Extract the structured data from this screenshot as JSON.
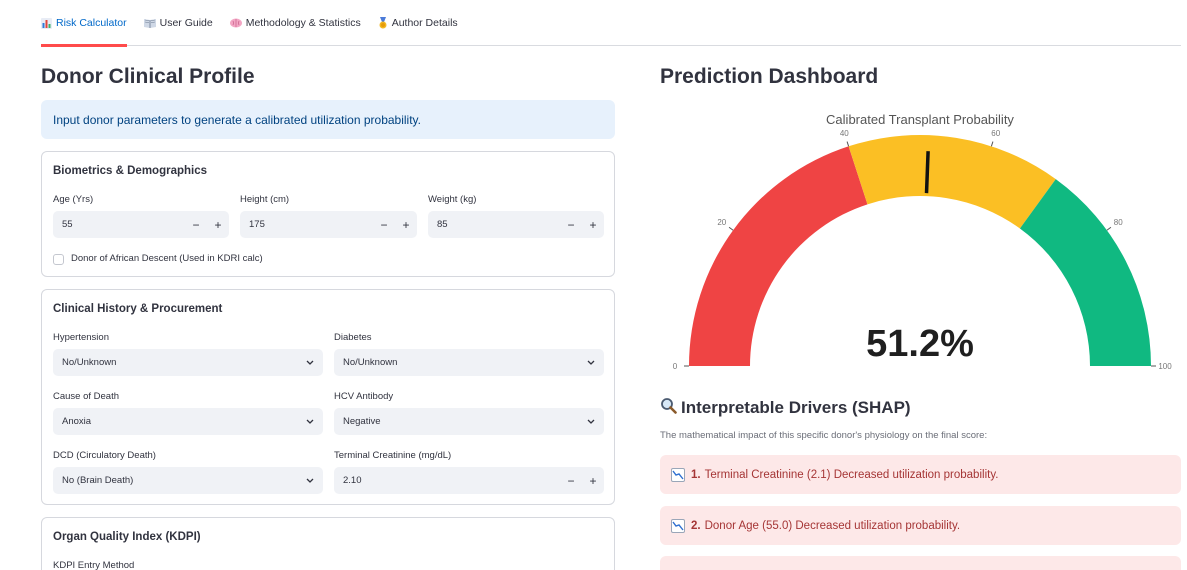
{
  "tabs": [
    {
      "label": "Risk Calculator",
      "icon": "bar-chart-icon",
      "active": true
    },
    {
      "label": "User Guide",
      "icon": "book-icon",
      "active": false
    },
    {
      "label": "Methodology & Statistics",
      "icon": "brain-icon",
      "active": false
    },
    {
      "label": "Author Details",
      "icon": "medal-icon",
      "active": false
    }
  ],
  "left": {
    "title": "Donor Clinical Profile",
    "info": "Input donor parameters to generate a calibrated utilization probability.",
    "biometrics": {
      "title": "Biometrics & Demographics",
      "age_label": "Age (Yrs)",
      "age_value": "55",
      "height_label": "Height (cm)",
      "height_value": "175",
      "weight_label": "Weight (kg)",
      "weight_value": "85",
      "african_descent_label": "Donor of African Descent (Used in KDRI calc)",
      "african_descent_checked": false
    },
    "clinical": {
      "title": "Clinical History & Procurement",
      "hypertension_label": "Hypertension",
      "hypertension_value": "No/Unknown",
      "diabetes_label": "Diabetes",
      "diabetes_value": "No/Unknown",
      "cause_label": "Cause of Death",
      "cause_value": "Anoxia",
      "hcv_label": "HCV Antibody",
      "hcv_value": "Negative",
      "dcd_label": "DCD (Circulatory Death)",
      "dcd_value": "No (Brain Death)",
      "creatinine_label": "Terminal Creatinine (mg/dL)",
      "creatinine_value": "2.10"
    },
    "kdpi": {
      "title": "Organ Quality Index (KDPI)",
      "entry_label": "KDPI Entry Method"
    },
    "plus": "+",
    "minus": "−"
  },
  "right": {
    "title": "Prediction Dashboard",
    "gauge": {
      "title": "Calibrated Transplant Probability",
      "value_text": "51.2%",
      "value": 51.2,
      "threshold": 51.2,
      "min": 0,
      "max": 100,
      "ticks": [
        "0",
        "20",
        "40",
        "60",
        "80",
        "100"
      ],
      "bands": [
        {
          "from": 0,
          "to": 40,
          "color": "#ef4444"
        },
        {
          "from": 40,
          "to": 70,
          "color": "#fbbf24"
        },
        {
          "from": 70,
          "to": 100,
          "color": "#10b981"
        }
      ]
    },
    "shap": {
      "title": "Interpretable Drivers (SHAP)",
      "caption": "The mathematical impact of this specific donor's physiology on the final score:",
      "items": [
        {
          "rank": "1.",
          "text": "Terminal Creatinine (2.1) Decreased utilization probability."
        },
        {
          "rank": "2.",
          "text": "Donor Age (55.0) Decreased utilization probability."
        }
      ]
    }
  }
}
